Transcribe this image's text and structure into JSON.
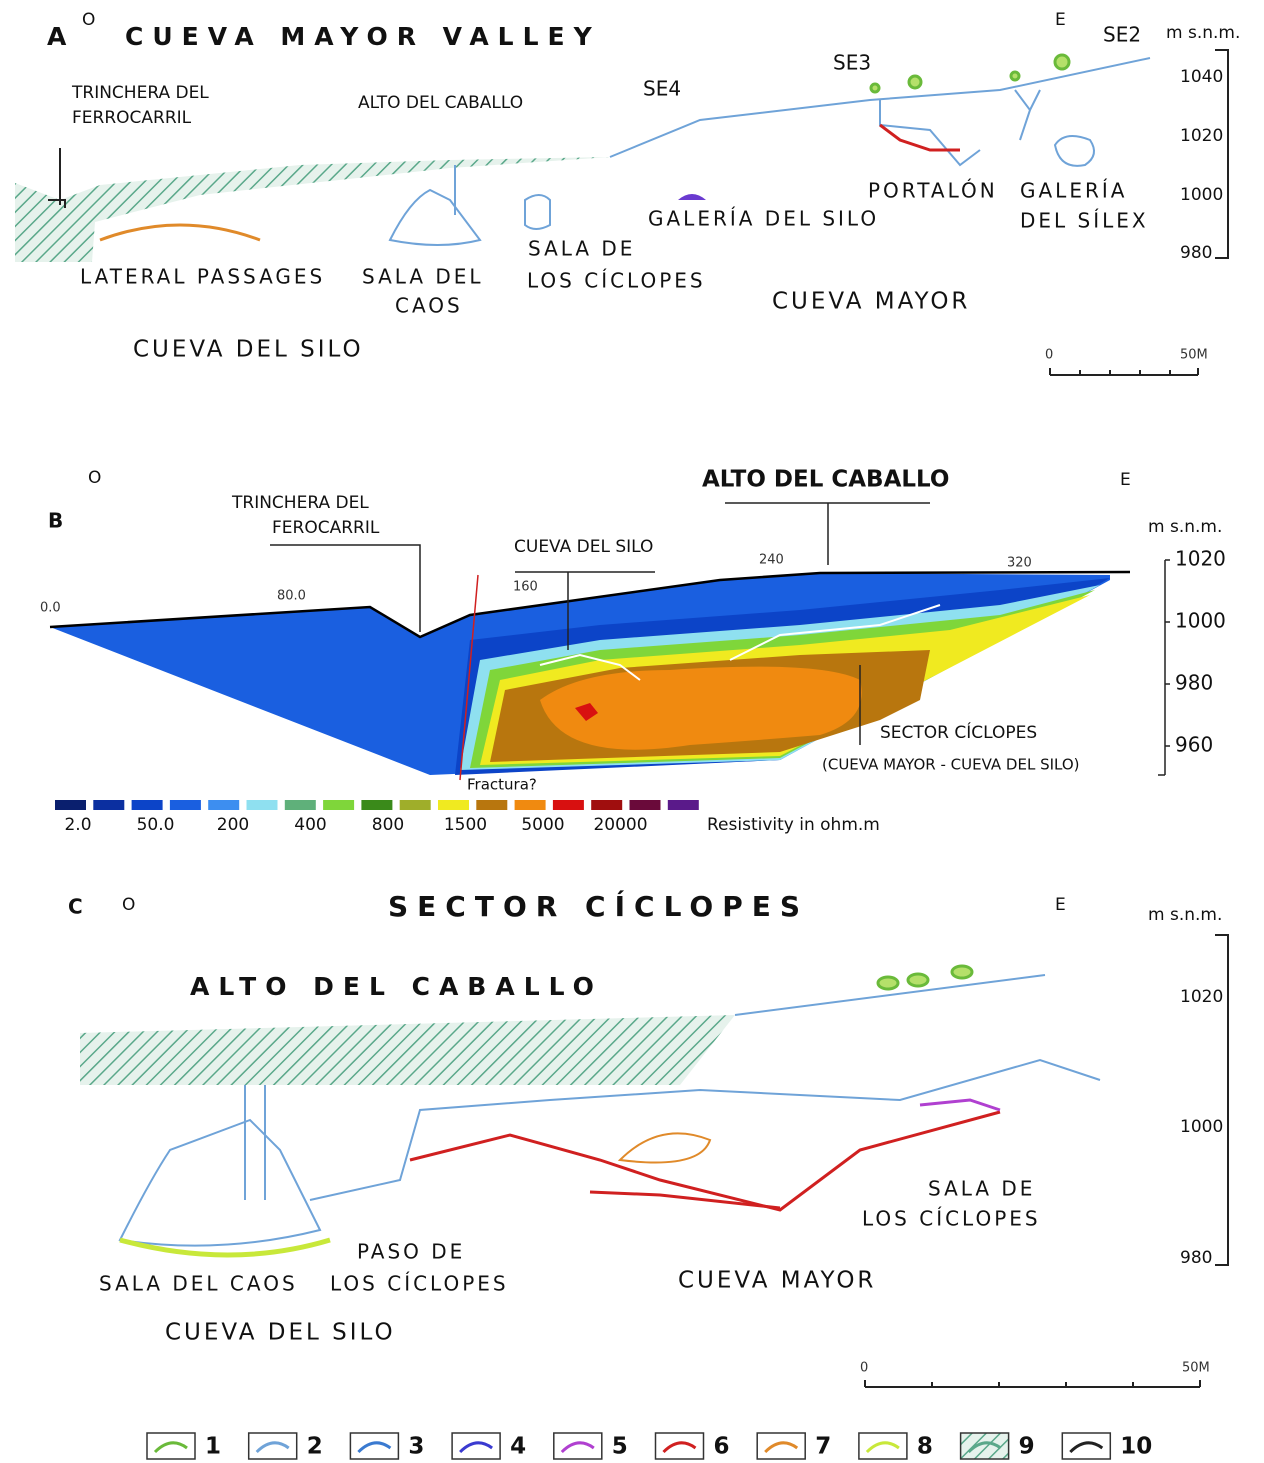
{
  "panel_a": {
    "letter": "A",
    "west": "O",
    "title": "CUEVA MAYOR VALLEY",
    "east": "E",
    "axis_unit": "m s.n.m.",
    "elevation_ticks": [
      "1040",
      "1020",
      "1000",
      "980"
    ],
    "scale": [
      "0",
      "50M"
    ],
    "labels": [
      "SE2",
      "SE3",
      "SE4",
      "TRINCHERA DEL",
      "FERROCARRIL",
      "ALTO DEL CABALLO",
      "PORTALÓN",
      "GALERÍA",
      "DEL SÍLEX",
      "GALERÍA DEL SILO",
      "SALA DE",
      "LOS CÍCLOPES",
      "LATERAL PASSAGES",
      "SALA DEL",
      "CAOS",
      "CUEVA MAYOR",
      "CUEVA DEL SILO"
    ]
  },
  "panel_b": {
    "letter": "B",
    "west": "O",
    "east": "E",
    "axis_unit": "m s.n.m.",
    "distance_ticks": [
      "0.0",
      "80.0",
      "160",
      "240",
      "320"
    ],
    "elevation_ticks": [
      "1020",
      "1000",
      "980",
      "960"
    ],
    "labels": [
      "TRINCHERA DEL",
      "FEROCARRIL",
      "ALTO DEL CABALLO",
      "CUEVA DEL SILO",
      "SECTOR CÍCLOPES",
      "(CUEVA MAYOR - CUEVA DEL SILO)",
      "Fractura?"
    ],
    "legend": {
      "colors": [
        "#0a1f6e",
        "#0b2fa0",
        "#0c44c8",
        "#1a5fe0",
        "#3d8ef0",
        "#8fe0f0",
        "#5fb07a",
        "#7fd63a",
        "#3a8a1a",
        "#9fae2a",
        "#f0ea20",
        "#b8760e",
        "#f08a10",
        "#d81010",
        "#a00e0e",
        "#6a0a3a",
        "#5a1a8a"
      ],
      "labels": [
        "2.0",
        "50.0",
        "200",
        "400",
        "800",
        "1500",
        "5000",
        "20000"
      ],
      "title": "Resistivity in ohm.m"
    }
  },
  "panel_c": {
    "letter": "C",
    "west": "O",
    "title": "SECTOR CÍCLOPES",
    "east": "E",
    "axis_unit": "m s.n.m.",
    "elevation_ticks": [
      "1020",
      "1000",
      "980"
    ],
    "scale": [
      "0",
      "50M"
    ],
    "labels": [
      "ALTO DEL CABALLO",
      "SALA DE",
      "LOS CÍCLOPES",
      "PASO DE",
      "LOS CÍCLOPES",
      "SALA DEL CAOS",
      "CUEVA MAYOR",
      "CUEVA DEL SILO"
    ],
    "legend_items": [
      "1",
      "2",
      "3",
      "4",
      "5",
      "6",
      "7",
      "8",
      "9",
      "10"
    ]
  }
}
